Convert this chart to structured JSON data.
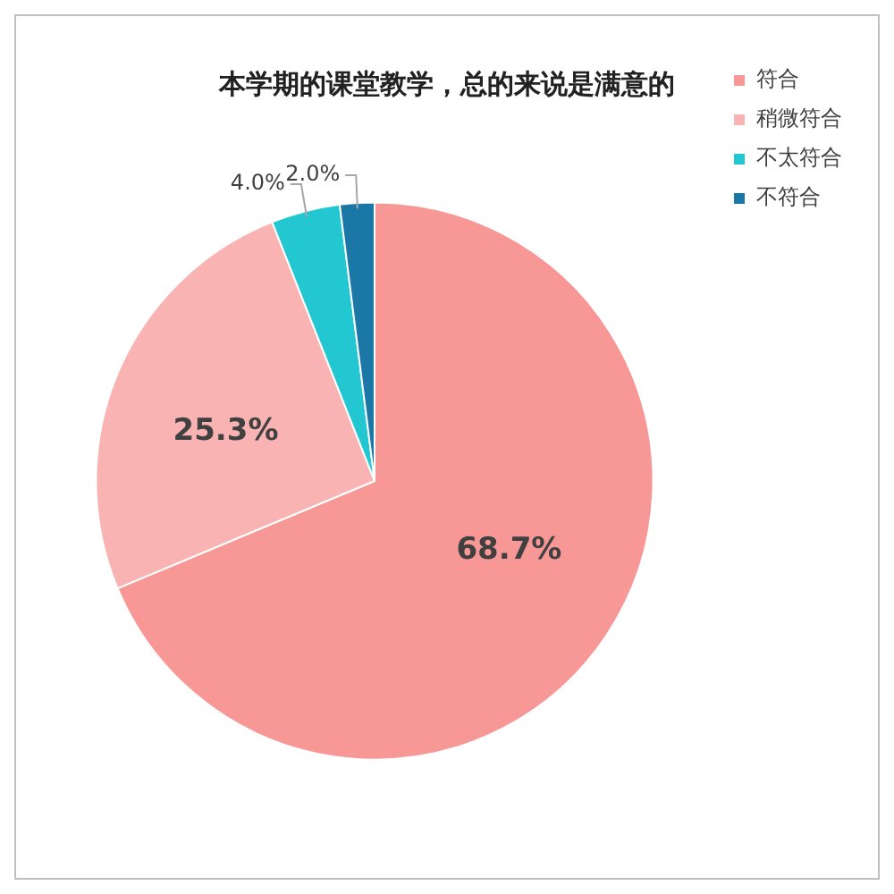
{
  "chart_data": {
    "type": "pie",
    "title": "本学期的课堂教学，总的来说是满意的",
    "categories": [
      "符合",
      "稍微符合",
      "不太符合",
      "不符合"
    ],
    "values": [
      68.7,
      25.3,
      4.0,
      2.0
    ],
    "value_labels": [
      "68.7%",
      "25.3%",
      "4.0%",
      "2.0%"
    ],
    "colors": [
      "#f89896",
      "#f9b3b2",
      "#22c7d2",
      "#1b78a6"
    ],
    "legend": "top right"
  }
}
